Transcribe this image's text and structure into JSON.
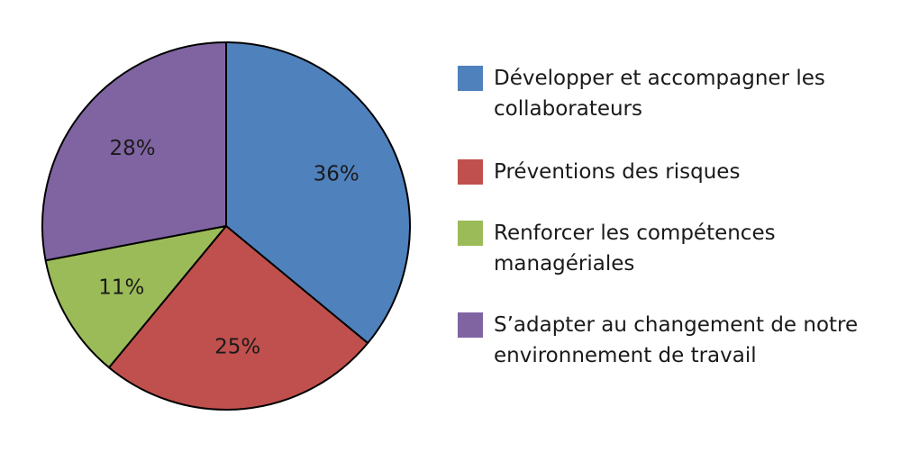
{
  "chart_data": {
    "type": "pie",
    "legend_position": "right",
    "slices": [
      {
        "label": "Développer et accompagner les collaborateurs",
        "value": 36,
        "value_label": "36%",
        "color": "#4f81bd"
      },
      {
        "label": "Préventions des risques",
        "value": 25,
        "value_label": "25%",
        "color": "#c0504d"
      },
      {
        "label": "Renforcer les compétences managériales",
        "value": 11,
        "value_label": "11%",
        "color": "#9bbb59"
      },
      {
        "label": "S’adapter au changement de notre environnement de travail",
        "value": 28,
        "value_label": "28%",
        "color": "#8064a2"
      }
    ]
  }
}
